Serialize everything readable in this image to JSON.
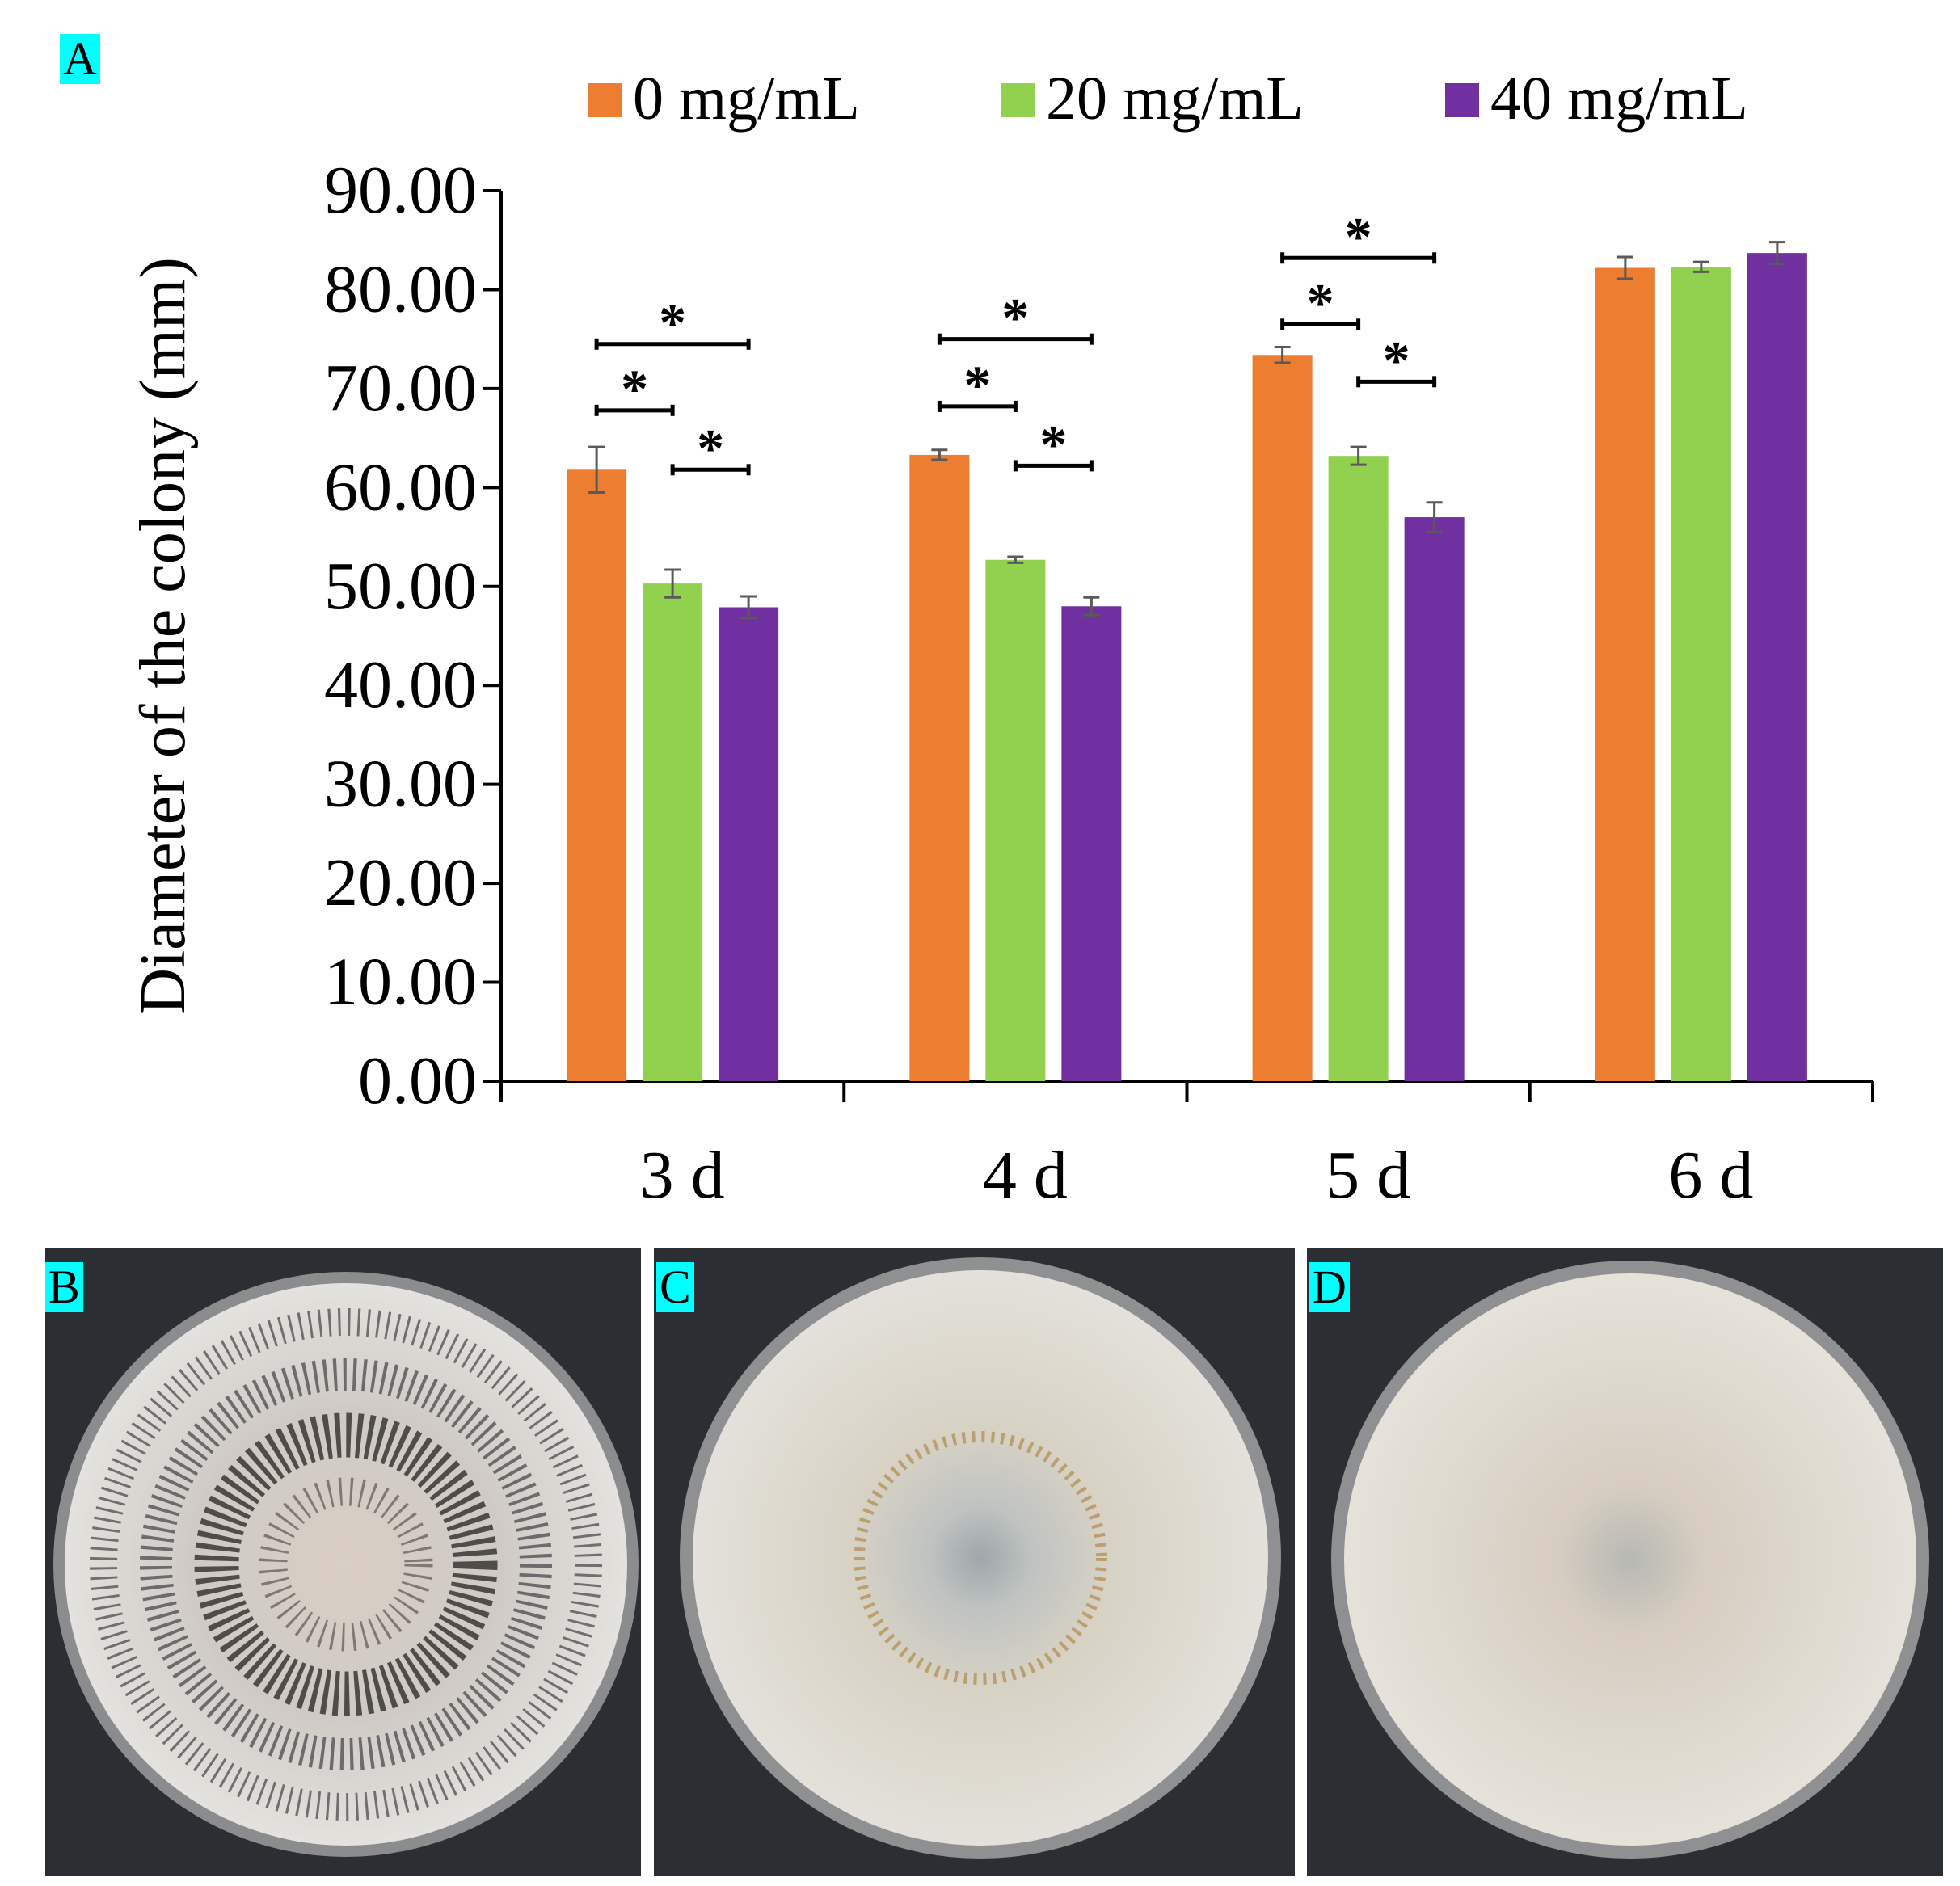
{
  "panel_labels": {
    "a": "A",
    "b": "B",
    "c": "C",
    "d": "D"
  },
  "chart_data": {
    "type": "bar",
    "ylabel": "Diameter of the colony (mm)",
    "xlabel": "",
    "ylim": [
      0,
      90
    ],
    "yticks": [
      "0.00",
      "10.00",
      "20.00",
      "30.00",
      "40.00",
      "50.00",
      "60.00",
      "70.00",
      "80.00",
      "90.00"
    ],
    "categories": [
      "3 d",
      "4 d",
      "5 d",
      "6 d"
    ],
    "legend_position": "top",
    "series": [
      {
        "name": "0 mg/mL",
        "color": "#ed7d31",
        "values": [
          61.8,
          63.3,
          73.4,
          82.2
        ],
        "errors": [
          2.3,
          0.5,
          0.8,
          1.1
        ]
      },
      {
        "name": "20 mg/mL",
        "color": "#92d050",
        "values": [
          50.3,
          52.7,
          63.2,
          82.3
        ],
        "errors": [
          1.4,
          0.3,
          0.9,
          0.5
        ]
      },
      {
        "name": "40 mg/mL",
        "color": "#7030a0",
        "values": [
          47.9,
          48.0,
          57.0,
          83.7
        ],
        "errors": [
          1.1,
          0.9,
          1.5,
          1.1
        ]
      }
    ],
    "significance_label": "*",
    "significance": [
      {
        "category": 0,
        "from": 0,
        "to": 2,
        "y": 74.5
      },
      {
        "category": 0,
        "from": 0,
        "to": 1,
        "y": 67.8
      },
      {
        "category": 0,
        "from": 1,
        "to": 2,
        "y": 61.8
      },
      {
        "category": 1,
        "from": 0,
        "to": 2,
        "y": 75.0
      },
      {
        "category": 1,
        "from": 0,
        "to": 1,
        "y": 68.2
      },
      {
        "category": 1,
        "from": 1,
        "to": 2,
        "y": 62.2
      },
      {
        "category": 2,
        "from": 0,
        "to": 2,
        "y": 83.2
      },
      {
        "category": 2,
        "from": 0,
        "to": 1,
        "y": 76.5
      },
      {
        "category": 2,
        "from": 1,
        "to": 2,
        "y": 70.7
      }
    ]
  }
}
